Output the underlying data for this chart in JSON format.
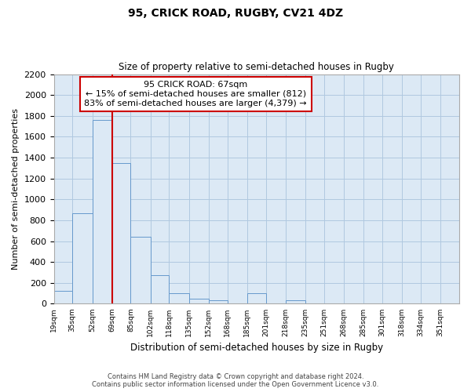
{
  "title": "95, CRICK ROAD, RUGBY, CV21 4DZ",
  "subtitle": "Size of property relative to semi-detached houses in Rugby",
  "xlabel": "Distribution of semi-detached houses by size in Rugby",
  "ylabel": "Number of semi-detached properties",
  "bar_labels": [
    "19sqm",
    "35sqm",
    "52sqm",
    "69sqm",
    "85sqm",
    "102sqm",
    "118sqm",
    "135sqm",
    "152sqm",
    "168sqm",
    "185sqm",
    "201sqm",
    "218sqm",
    "235sqm",
    "251sqm",
    "268sqm",
    "285sqm",
    "301sqm",
    "318sqm",
    "334sqm",
    "351sqm"
  ],
  "bar_values": [
    120,
    870,
    1760,
    1350,
    645,
    270,
    100,
    50,
    30,
    0,
    100,
    0,
    30,
    0,
    0,
    0,
    0,
    0,
    0,
    0,
    0
  ],
  "bar_color": "#dce9f5",
  "bar_edge_color": "#6699cc",
  "bin_edges": [
    19,
    35,
    52,
    69,
    85,
    102,
    118,
    135,
    152,
    168,
    185,
    201,
    218,
    235,
    251,
    268,
    285,
    301,
    318,
    334,
    351,
    367
  ],
  "ylim": [
    0,
    2200
  ],
  "yticks": [
    0,
    200,
    400,
    600,
    800,
    1000,
    1200,
    1400,
    1600,
    1800,
    2000,
    2200
  ],
  "annotation_title": "95 CRICK ROAD: 67sqm",
  "annotation_line1": "← 15% of semi-detached houses are smaller (812)",
  "annotation_line2": "83% of semi-detached houses are larger (4,379) →",
  "vline_color": "#cc0000",
  "annotation_box_color": "#ffffff",
  "annotation_box_edge": "#cc0000",
  "footer1": "Contains HM Land Registry data © Crown copyright and database right 2024.",
  "footer2": "Contains public sector information licensed under the Open Government Licence v3.0.",
  "background_color": "#ffffff",
  "plot_bg_color": "#dce9f5",
  "grid_color": "#b0c8e0"
}
